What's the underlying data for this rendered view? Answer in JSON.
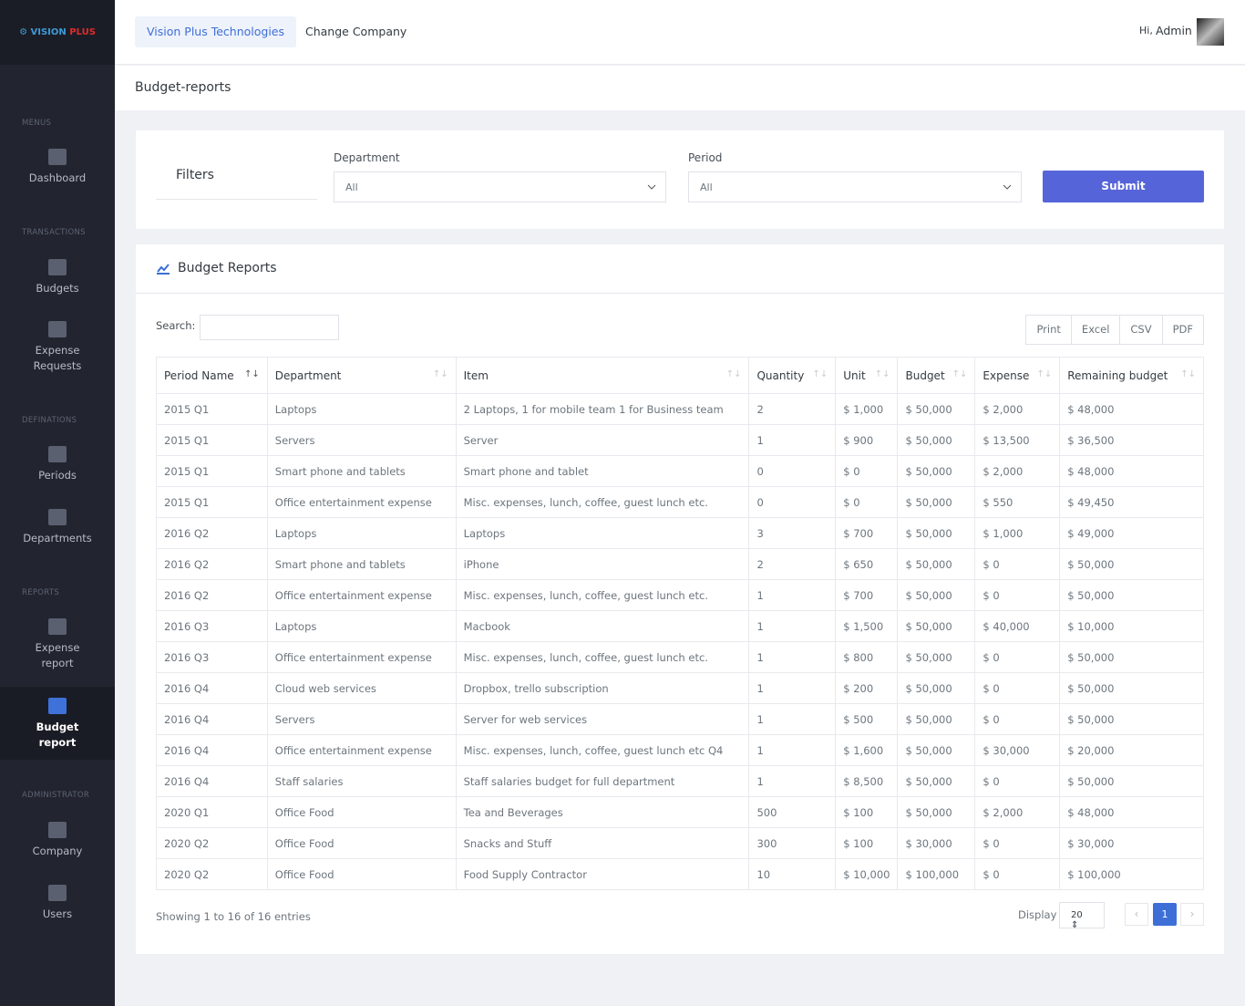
{
  "logo": {
    "part1": "VISION",
    "part2": "PLUS"
  },
  "sidebar": {
    "sections": [
      {
        "title": "MENUS",
        "items": [
          "Dashboard"
        ]
      },
      {
        "title": "TRANSACTIONS",
        "items": [
          "Budgets",
          "Expense Requests"
        ]
      },
      {
        "title": "DEFINATIONS",
        "items": [
          "Periods",
          "Departments"
        ]
      },
      {
        "title": "REPORTS",
        "items": [
          "Expense report",
          "Budget report"
        ]
      },
      {
        "title": "ADMINISTRATOR",
        "items": [
          "Company",
          "Users"
        ]
      }
    ]
  },
  "topbar": {
    "company": "Vision Plus Technologies",
    "change": "Change Company",
    "greeting": "Hi,",
    "user": "Admin"
  },
  "page_title": "Budget-reports",
  "filters": {
    "title": "Filters",
    "department_label": "Department",
    "department_value": "All",
    "period_label": "Period",
    "period_value": "All",
    "submit": "Submit"
  },
  "report": {
    "title": "Budget Reports",
    "search_label": "Search:",
    "buttons": [
      "Print",
      "Excel",
      "CSV",
      "PDF"
    ],
    "table": {
      "headers": [
        "Period Name",
        "Department",
        "Item",
        "Quantity",
        "Unit",
        "Budget",
        "Expense",
        "Remaining budget"
      ],
      "rows": [
        [
          "2015 Q1",
          "Laptops",
          "2 Laptops, 1 for mobile team 1 for Business team",
          "2",
          "$ 1,000",
          "$ 50,000",
          "$ 2,000",
          "$ 48,000"
        ],
        [
          "2015 Q1",
          "Servers",
          "Server",
          "1",
          "$ 900",
          "$ 50,000",
          "$ 13,500",
          "$ 36,500"
        ],
        [
          "2015 Q1",
          "Smart phone and tablets",
          "Smart phone and tablet",
          "0",
          "$ 0",
          "$ 50,000",
          "$ 2,000",
          "$ 48,000"
        ],
        [
          "2015 Q1",
          "Office entertainment expense",
          "Misc. expenses, lunch, coffee, guest lunch etc.",
          "0",
          "$ 0",
          "$ 50,000",
          "$ 550",
          "$ 49,450"
        ],
        [
          "2016 Q2",
          "Laptops",
          "Laptops",
          "3",
          "$ 700",
          "$ 50,000",
          "$ 1,000",
          "$ 49,000"
        ],
        [
          "2016 Q2",
          "Smart phone and tablets",
          "iPhone",
          "2",
          "$ 650",
          "$ 50,000",
          "$ 0",
          "$ 50,000"
        ],
        [
          "2016 Q2",
          "Office entertainment expense",
          "Misc. expenses, lunch, coffee, guest lunch etc.",
          "1",
          "$ 700",
          "$ 50,000",
          "$ 0",
          "$ 50,000"
        ],
        [
          "2016 Q3",
          "Laptops",
          "Macbook",
          "1",
          "$ 1,500",
          "$ 50,000",
          "$ 40,000",
          "$ 10,000"
        ],
        [
          "2016 Q3",
          "Office entertainment expense",
          "Misc. expenses, lunch, coffee, guest lunch etc.",
          "1",
          "$ 800",
          "$ 50,000",
          "$ 0",
          "$ 50,000"
        ],
        [
          "2016 Q4",
          "Cloud web services",
          "Dropbox, trello subscription",
          "1",
          "$ 200",
          "$ 50,000",
          "$ 0",
          "$ 50,000"
        ],
        [
          "2016 Q4",
          "Servers",
          "Server for web services",
          "1",
          "$ 500",
          "$ 50,000",
          "$ 0",
          "$ 50,000"
        ],
        [
          "2016 Q4",
          "Office entertainment expense",
          "Misc. expenses, lunch, coffee, guest lunch etc Q4",
          "1",
          "$ 1,600",
          "$ 50,000",
          "$ 30,000",
          "$ 20,000"
        ],
        [
          "2016 Q4",
          "Staff salaries",
          "Staff salaries budget for full department",
          "1",
          "$ 8,500",
          "$ 50,000",
          "$ 0",
          "$ 50,000"
        ],
        [
          "2020 Q1",
          "Office Food",
          "Tea and Beverages",
          "500",
          "$ 100",
          "$ 50,000",
          "$ 2,000",
          "$ 48,000"
        ],
        [
          "2020 Q2",
          "Office Food",
          "Snacks and Stuff",
          "300",
          "$ 100",
          "$ 30,000",
          "$ 0",
          "$ 30,000"
        ],
        [
          "2020 Q2",
          "Office Food",
          "Food Supply Contractor",
          "10",
          "$ 10,000",
          "$ 100,000",
          "$ 0",
          "$ 100,000"
        ]
      ]
    },
    "info": "Showing 1 to 16 of 16 entries",
    "display_label": "Display",
    "page_size": "20",
    "page": "1"
  }
}
